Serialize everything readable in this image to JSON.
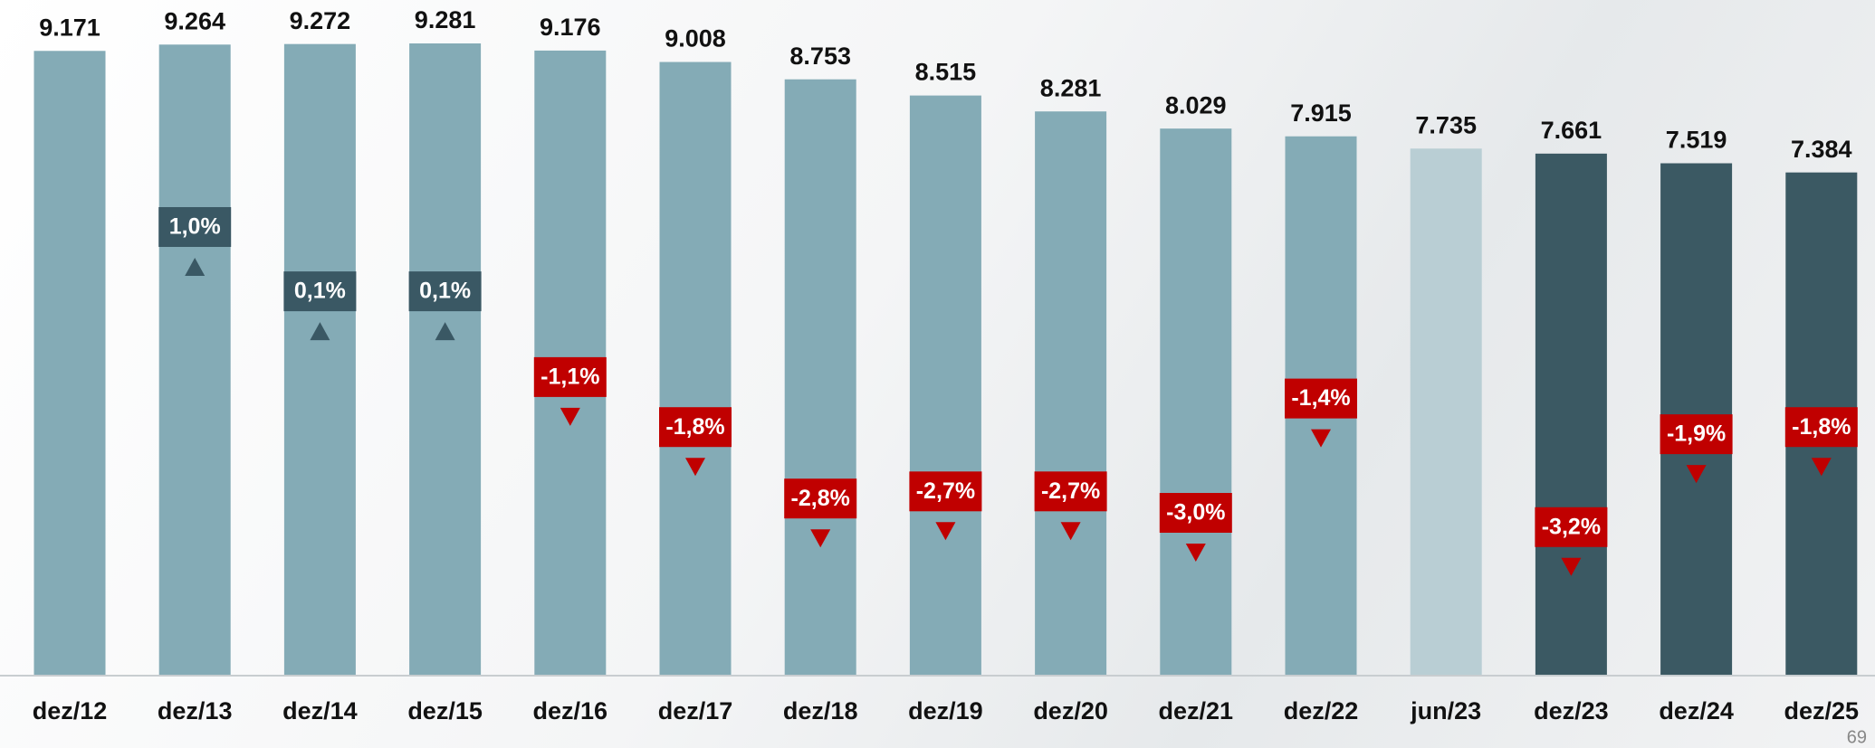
{
  "chart_data": {
    "type": "bar",
    "categories": [
      "dez/12",
      "dez/13",
      "dez/14",
      "dez/15",
      "dez/16",
      "dez/17",
      "dez/18",
      "dez/19",
      "dez/20",
      "dez/21",
      "dez/22",
      "jun/23",
      "dez/23",
      "dez/24",
      "dez/25"
    ],
    "values": [
      9171,
      9264,
      9272,
      9281,
      9176,
      9008,
      8753,
      8515,
      8281,
      8029,
      7915,
      7735,
      7661,
      7519,
      7384
    ],
    "value_labels": [
      "9.171",
      "9.264",
      "9.272",
      "9.281",
      "9.176",
      "9.008",
      "8.753",
      "8.515",
      "8.281",
      "8.029",
      "7.915",
      "7.735",
      "7.661",
      "7.519",
      "7.384"
    ],
    "colors": [
      "#84abb6",
      "#84abb6",
      "#84abb6",
      "#84abb6",
      "#84abb6",
      "#84abb6",
      "#84abb6",
      "#84abb6",
      "#84abb6",
      "#84abb6",
      "#84abb6",
      "#b9ced4",
      "#3b5963",
      "#3b5963",
      "#3b5963"
    ],
    "changes": [
      null,
      1.0,
      0.1,
      0.1,
      -1.1,
      -1.8,
      -2.8,
      -2.7,
      -2.7,
      -3.0,
      -1.4,
      null,
      -3.2,
      -1.9,
      -1.8
    ],
    "change_labels": [
      null,
      "1,0%",
      "0,1%",
      "0,1%",
      "-1,1%",
      "-1,8%",
      "-2,8%",
      "-2,7%",
      "-2,7%",
      "-3,0%",
      "-1,4%",
      null,
      "-3,2%",
      "-1,9%",
      "-1,8%"
    ],
    "up_color": "#3a5864",
    "down_color": "#c00000"
  },
  "page_number": "69"
}
